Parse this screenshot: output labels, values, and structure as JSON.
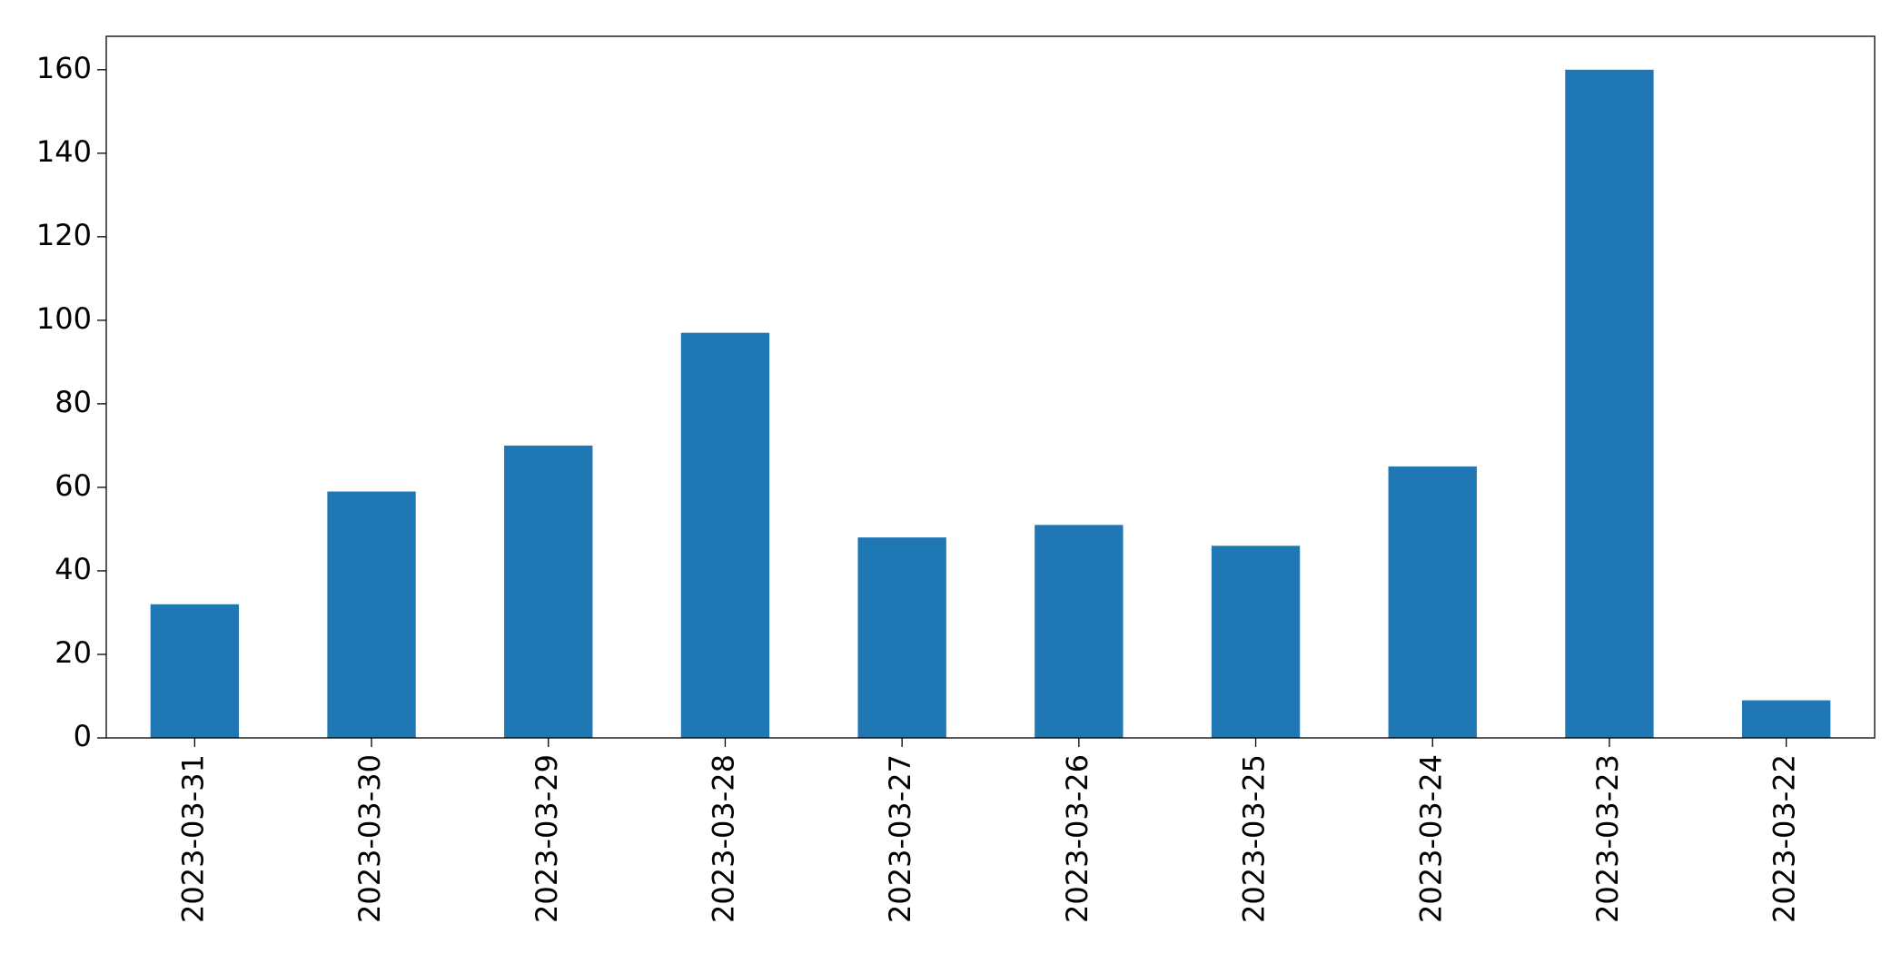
{
  "chart_data": {
    "type": "bar",
    "categories": [
      "2023-03-31",
      "2023-03-30",
      "2023-03-29",
      "2023-03-28",
      "2023-03-27",
      "2023-03-26",
      "2023-03-25",
      "2023-03-24",
      "2023-03-23",
      "2023-03-22"
    ],
    "values": [
      32,
      59,
      70,
      97,
      48,
      51,
      46,
      65,
      160,
      9
    ],
    "color": "#1f77b4",
    "ylim": [
      0,
      168
    ],
    "yticks": [
      0,
      20,
      40,
      60,
      80,
      100,
      120,
      140,
      160
    ],
    "grid": false
  }
}
